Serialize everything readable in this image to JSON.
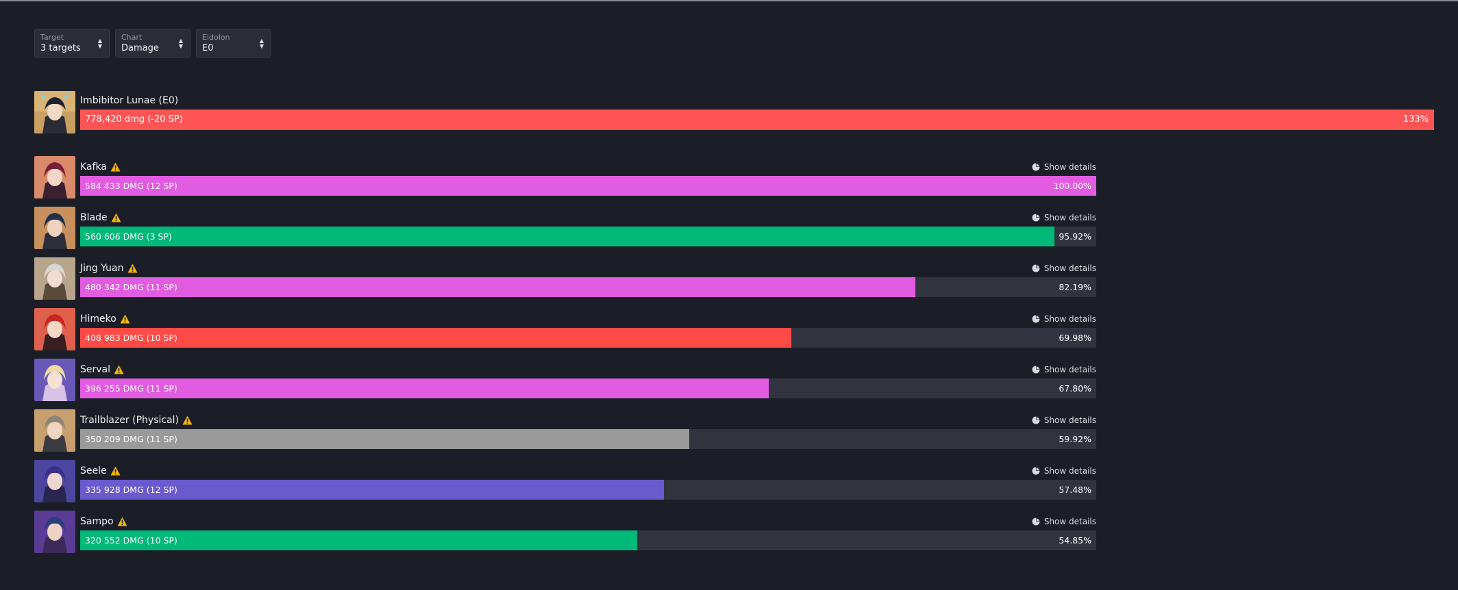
{
  "filters": [
    {
      "label": "Target",
      "value": "3 targets"
    },
    {
      "label": "Chart",
      "value": "Damage"
    },
    {
      "label": "Eidolon",
      "value": "E0"
    }
  ],
  "hero": {
    "name": "Imbibitor Lunae (E0)",
    "damage": "778,420 dmg (-20 SP)",
    "percent": "133%",
    "color": "#ff5455",
    "avatar_icon": "imbibitor-lunae-portrait"
  },
  "details_label": "Show details",
  "characters": [
    {
      "name": "Kafka",
      "damage": "584 433 DMG (12 SP)",
      "percent": "100.00%",
      "ratio": 1.0,
      "color": "#e15ce0",
      "avatar_icon": "kafka-portrait"
    },
    {
      "name": "Blade",
      "damage": "560 606 DMG (3 SP)",
      "percent": "95.92%",
      "ratio": 0.9592,
      "color": "#00b877",
      "avatar_icon": "blade-portrait"
    },
    {
      "name": "Jing Yuan",
      "damage": "480 342 DMG (11 SP)",
      "percent": "82.19%",
      "ratio": 0.8219,
      "color": "#e15ce0",
      "avatar_icon": "jing-yuan-portrait"
    },
    {
      "name": "Himeko",
      "damage": "408 983 DMG (10 SP)",
      "percent": "69.98%",
      "ratio": 0.6998,
      "color": "#ff4a45",
      "avatar_icon": "himeko-portrait"
    },
    {
      "name": "Serval",
      "damage": "396 255 DMG (11 SP)",
      "percent": "67.80%",
      "ratio": 0.678,
      "color": "#e15ce0",
      "avatar_icon": "serval-portrait"
    },
    {
      "name": "Trailblazer (Physical)",
      "damage": "350 209 DMG (11 SP)",
      "percent": "59.92%",
      "ratio": 0.5992,
      "color": "#9a9a9a",
      "avatar_icon": "trailblazer-portrait"
    },
    {
      "name": "Seele",
      "damage": "335 928 DMG (12 SP)",
      "percent": "57.48%",
      "ratio": 0.5748,
      "color": "#6a5acd",
      "avatar_icon": "seele-portrait"
    },
    {
      "name": "Sampo",
      "damage": "320 552 DMG (10 SP)",
      "percent": "54.85%",
      "ratio": 0.5485,
      "color": "#00b877",
      "avatar_icon": "sampo-portrait"
    }
  ]
}
